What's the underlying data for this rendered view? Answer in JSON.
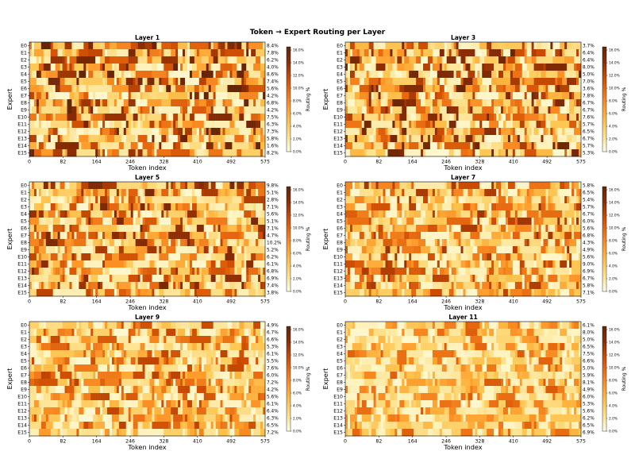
{
  "chart_data": {
    "type": "heatmap",
    "title": "Token → Expert Routing per Layer",
    "xlabel": "Token index",
    "ylabel": "Expert",
    "x_ticks": [
      "0",
      "82",
      "164",
      "246",
      "328",
      "410",
      "492",
      "575"
    ],
    "y_categories": [
      "E0",
      "E1",
      "E2",
      "E3",
      "E4",
      "E5",
      "E6",
      "E7",
      "E8",
      "E9",
      "E10",
      "E11",
      "E12",
      "E13",
      "E14",
      "E15"
    ],
    "colorbar_label": "Routing %",
    "colorbar_ticks": [
      "0.0%",
      "2.0%",
      "4.0%",
      "6.0%",
      "8.0%",
      "10.0%",
      "12.0%",
      "14.0%",
      "16.0%"
    ],
    "colorbar_range": [
      0,
      16.5
    ],
    "colormap": [
      "#ffffe5",
      "#fee391",
      "#fec44f",
      "#fe9929",
      "#ec7014",
      "#cc4c02",
      "#8c2d04",
      "#662506"
    ],
    "panels": [
      {
        "title": "Layer 1",
        "routing_pct": [
          "8.4%",
          "7.8%",
          "6.2%",
          "4.0%",
          "8.6%",
          "7.4%",
          "5.6%",
          "4.2%",
          "6.8%",
          "4.2%",
          "7.5%",
          "6.3%",
          "7.3%",
          "5.8%",
          "1.6%",
          "8.2%"
        ]
      },
      {
        "title": "Layer 3",
        "routing_pct": [
          "3.7%",
          "6.4%",
          "6.4%",
          "8.0%",
          "5.0%",
          "7.0%",
          "3.6%",
          "7.8%",
          "6.7%",
          "6.7%",
          "7.6%",
          "5.7%",
          "6.5%",
          "6.7%",
          "5.7%",
          "5.3%"
        ]
      },
      {
        "title": "Layer 5",
        "routing_pct": [
          "9.8%",
          "5.1%",
          "2.8%",
          "7.1%",
          "5.6%",
          "5.1%",
          "7.1%",
          "4.7%",
          "10.2%",
          "5.2%",
          "6.2%",
          "6.1%",
          "6.8%",
          "6.9%",
          "7.4%",
          "3.8%"
        ]
      },
      {
        "title": "Layer 7",
        "routing_pct": [
          "5.8%",
          "6.5%",
          "5.4%",
          "5.7%",
          "6.7%",
          "6.0%",
          "5.6%",
          "6.8%",
          "4.3%",
          "4.9%",
          "5.6%",
          "9.0%",
          "6.9%",
          "6.7%",
          "5.8%",
          "7.1%"
        ]
      },
      {
        "title": "Layer 9",
        "routing_pct": [
          "4.9%",
          "6.7%",
          "6.6%",
          "5.3%",
          "6.1%",
          "5.5%",
          "7.6%",
          "6.0%",
          "7.2%",
          "4.2%",
          "5.6%",
          "6.1%",
          "6.4%",
          "6.3%",
          "6.5%",
          "7.2%"
        ]
      },
      {
        "title": "Layer 11",
        "routing_pct": [
          "6.1%",
          "8.0%",
          "5.0%",
          "6.5%",
          "7.5%",
          "6.6%",
          "5.0%",
          "5.9%",
          "8.1%",
          "4.9%",
          "6.0%",
          "5.3%",
          "5.6%",
          "6.2%",
          "6.5%",
          "6.9%"
        ]
      }
    ]
  }
}
